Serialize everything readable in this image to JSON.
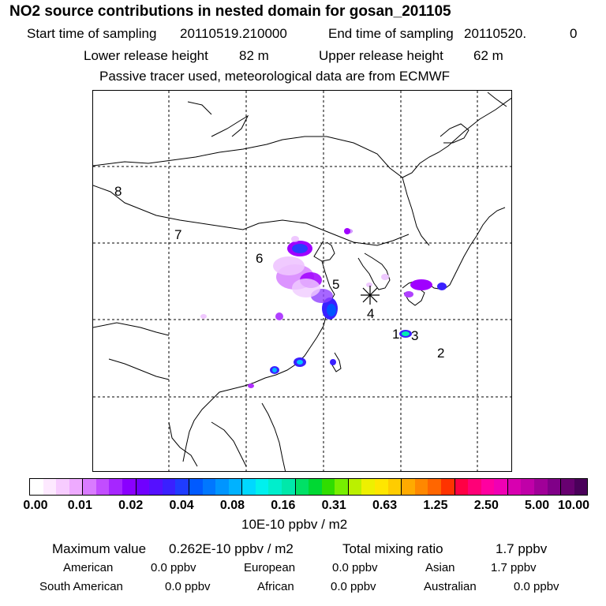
{
  "header": {
    "title": "NO2 source contributions in nested domain for gosan_201105",
    "start_label": "Start time of sampling",
    "start_value": "20110519.210000",
    "end_label": "End time of sampling",
    "end_value": "20110520.",
    "end_suffix": "0",
    "lower_label": "Lower release height",
    "lower_value": "82 m",
    "upper_label": "Upper release height",
    "upper_value": "62 m",
    "tracer_line": "Passive tracer used, meteorological data are from ECMWF"
  },
  "map": {
    "region_labels": [
      "1",
      "2",
      "3",
      "4",
      "5",
      "6",
      "7",
      "8"
    ],
    "receptor_symbol": "asterisk-marker",
    "plume_color": "#a000ff",
    "hotspot_color": "#0050ff"
  },
  "colorbar": {
    "ticks": [
      "0.00",
      "0.01",
      "0.02",
      "0.04",
      "0.08",
      "0.16",
      "0.31",
      "0.63",
      "1.25",
      "2.50",
      "5.00",
      "10.00"
    ],
    "colors": [
      "#ffffff",
      "#fde9ff",
      "#f7ccff",
      "#eeaaff",
      "#d97bff",
      "#c24dff",
      "#a626ff",
      "#8a00ff",
      "#7000ff",
      "#5510ff",
      "#3a20ff",
      "#1f3cff",
      "#005aff",
      "#0077ff",
      "#0095ff",
      "#00b2ff",
      "#00d8ff",
      "#00f0ee",
      "#00eecc",
      "#00e8aa",
      "#00e066",
      "#00d833",
      "#30dd00",
      "#77ee00",
      "#bbf000",
      "#eef000",
      "#ffe600",
      "#ffcc00",
      "#ffaa00",
      "#ff8800",
      "#ff6600",
      "#ff3300",
      "#ff0044",
      "#ff0077",
      "#ff00a0",
      "#f000b4",
      "#d800b0",
      "#c000a8",
      "#a00098",
      "#800088",
      "#680070",
      "#4a005a"
    ],
    "units": "10E-10 ppbv / m2"
  },
  "summary": {
    "max_label": "Maximum value",
    "max_value": "0.262E-10 ppbv / m2",
    "total_label": "Total mixing ratio",
    "total_value": "1.7 ppbv",
    "regions": [
      {
        "name": "American",
        "value": "0.0 ppbv"
      },
      {
        "name": "European",
        "value": "0.0 ppbv"
      },
      {
        "name": "Asian",
        "value": "1.7 ppbv"
      },
      {
        "name": "South American",
        "value": "0.0 ppbv"
      },
      {
        "name": "African",
        "value": "0.0 ppbv"
      },
      {
        "name": "Australian",
        "value": "0.0 ppbv"
      }
    ]
  }
}
